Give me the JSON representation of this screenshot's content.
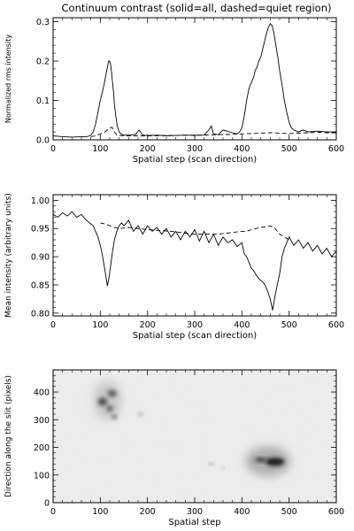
{
  "figure": {
    "title": "Continuum contrast (solid=all, dashed=quiet region)"
  },
  "chart_data": [
    {
      "type": "line",
      "xlabel": "Spatial step (scan direction)",
      "ylabel": "Normalized rms intensity",
      "xlim": [
        0,
        600
      ],
      "ylim": [
        0,
        0.31
      ],
      "x_ticks": [
        0,
        100,
        200,
        300,
        400,
        500,
        600
      ],
      "y_ticks": [
        0.0,
        0.1,
        0.2,
        0.3
      ],
      "x_tick_labels": [
        "0",
        "100",
        "200",
        "300",
        "400",
        "500",
        "600"
      ],
      "y_tick_labels": [
        "0.0",
        "0.1",
        "0.2",
        "0.3"
      ],
      "series": [
        {
          "style": "solid",
          "x": [
            0,
            20,
            40,
            60,
            70,
            75,
            80,
            85,
            90,
            95,
            100,
            104,
            108,
            112,
            116,
            118,
            120,
            122,
            124,
            126,
            128,
            130,
            133,
            136,
            140,
            145,
            150,
            160,
            175,
            182,
            190,
            200,
            220,
            240,
            260,
            280,
            300,
            320,
            330,
            335,
            340,
            350,
            360,
            380,
            390,
            395,
            400,
            405,
            410,
            415,
            420,
            425,
            428,
            432,
            436,
            440,
            444,
            448,
            452,
            456,
            460,
            464,
            468,
            472,
            476,
            480,
            485,
            490,
            495,
            500,
            505,
            510,
            520,
            530,
            540,
            560,
            580,
            600
          ],
          "y": [
            0.01,
            0.008,
            0.007,
            0.008,
            0.008,
            0.009,
            0.012,
            0.02,
            0.04,
            0.07,
            0.1,
            0.12,
            0.14,
            0.165,
            0.19,
            0.2,
            0.2,
            0.19,
            0.17,
            0.145,
            0.12,
            0.09,
            0.06,
            0.035,
            0.02,
            0.014,
            0.012,
            0.012,
            0.014,
            0.025,
            0.012,
            0.011,
            0.012,
            0.01,
            0.011,
            0.012,
            0.011,
            0.012,
            0.025,
            0.035,
            0.015,
            0.013,
            0.025,
            0.018,
            0.015,
            0.02,
            0.03,
            0.06,
            0.1,
            0.13,
            0.145,
            0.16,
            0.175,
            0.185,
            0.2,
            0.21,
            0.23,
            0.25,
            0.27,
            0.285,
            0.295,
            0.29,
            0.27,
            0.24,
            0.21,
            0.175,
            0.14,
            0.1,
            0.07,
            0.045,
            0.03,
            0.025,
            0.02,
            0.025,
            0.02,
            0.022,
            0.02,
            0.02
          ]
        },
        {
          "style": "dashed",
          "x": [
            80,
            90,
            100,
            110,
            115,
            120,
            125,
            130,
            135,
            140,
            150,
            170,
            200,
            250,
            300,
            350,
            380,
            400,
            420,
            440,
            460,
            480,
            500,
            520,
            540,
            560,
            580,
            600
          ],
          "y": [
            0.008,
            0.01,
            0.015,
            0.02,
            0.025,
            0.03,
            0.032,
            0.02,
            0.012,
            0.011,
            0.01,
            0.01,
            0.01,
            0.011,
            0.012,
            0.013,
            0.014,
            0.015,
            0.016,
            0.017,
            0.018,
            0.017,
            0.016,
            0.017,
            0.018,
            0.019,
            0.018,
            0.018
          ]
        }
      ]
    },
    {
      "type": "line",
      "xlabel": "Spatial step (scan direction)",
      "ylabel": "Mean intensity (arbitrary units)",
      "xlim": [
        0,
        600
      ],
      "ylim": [
        0.795,
        1.01
      ],
      "x_ticks": [
        0,
        100,
        200,
        300,
        400,
        500,
        600
      ],
      "y_ticks": [
        0.8,
        0.85,
        0.9,
        0.95,
        1.0
      ],
      "x_tick_labels": [
        "0",
        "100",
        "200",
        "300",
        "400",
        "500",
        "600"
      ],
      "y_tick_labels": [
        "0.80",
        "0.85",
        "0.90",
        "0.95",
        "1.00"
      ],
      "series": [
        {
          "style": "solid",
          "x": [
            0,
            10,
            20,
            30,
            40,
            50,
            60,
            70,
            80,
            85,
            90,
            95,
            100,
            104,
            108,
            112,
            115,
            118,
            122,
            126,
            130,
            135,
            140,
            145,
            150,
            160,
            170,
            180,
            190,
            200,
            210,
            220,
            230,
            240,
            250,
            260,
            270,
            280,
            290,
            300,
            310,
            320,
            330,
            340,
            350,
            360,
            370,
            380,
            390,
            400,
            405,
            410,
            415,
            420,
            425,
            430,
            435,
            440,
            445,
            450,
            455,
            460,
            465,
            470,
            475,
            480,
            485,
            490,
            495,
            500,
            510,
            520,
            530,
            540,
            550,
            560,
            570,
            580,
            590,
            600
          ],
          "y": [
            0.975,
            0.97,
            0.978,
            0.972,
            0.98,
            0.97,
            0.975,
            0.965,
            0.958,
            0.955,
            0.945,
            0.935,
            0.92,
            0.905,
            0.885,
            0.865,
            0.848,
            0.86,
            0.885,
            0.91,
            0.93,
            0.945,
            0.955,
            0.96,
            0.955,
            0.965,
            0.945,
            0.955,
            0.94,
            0.955,
            0.945,
            0.952,
            0.94,
            0.95,
            0.935,
            0.945,
            0.93,
            0.945,
            0.935,
            0.948,
            0.928,
            0.945,
            0.925,
            0.94,
            0.92,
            0.935,
            0.925,
            0.93,
            0.918,
            0.925,
            0.905,
            0.9,
            0.89,
            0.88,
            0.875,
            0.868,
            0.862,
            0.858,
            0.855,
            0.848,
            0.838,
            0.825,
            0.805,
            0.83,
            0.85,
            0.87,
            0.9,
            0.915,
            0.925,
            0.935,
            0.92,
            0.93,
            0.915,
            0.925,
            0.91,
            0.92,
            0.905,
            0.915,
            0.9,
            0.91
          ]
        },
        {
          "style": "dashed",
          "x": [
            100,
            110,
            120,
            130,
            140,
            160,
            200,
            250,
            300,
            350,
            400,
            410,
            420,
            430,
            440,
            450,
            460,
            470,
            480,
            490,
            500
          ],
          "y": [
            0.96,
            0.958,
            0.955,
            0.952,
            0.95,
            0.952,
            0.948,
            0.945,
            0.94,
            0.94,
            0.945,
            0.945,
            0.948,
            0.95,
            0.952,
            0.953,
            0.955,
            0.95,
            0.94,
            0.935,
            0.93
          ]
        }
      ]
    },
    {
      "type": "heatmap",
      "xlabel": "Spatial step",
      "ylabel": "Direction along the slit (pixels)",
      "xlim": [
        0,
        600
      ],
      "ylim": [
        0,
        480
      ],
      "x_ticks": [
        0,
        100,
        200,
        300,
        400,
        500,
        600
      ],
      "y_ticks": [
        0,
        100,
        200,
        300,
        400
      ],
      "x_tick_labels": [
        "0",
        "100",
        "200",
        "300",
        "400",
        "500",
        "600"
      ],
      "y_tick_labels": [
        "0",
        "100",
        "200",
        "300",
        "400"
      ],
      "colormap": "grayscale",
      "background": "#eeeeee",
      "features": [
        {
          "kind": "penumbra",
          "x": 115,
          "y": 370,
          "rx": 30,
          "ry": 70,
          "level": "#c8c8c8"
        },
        {
          "kind": "umbra",
          "x": 105,
          "y": 365,
          "rx": 10,
          "ry": 15,
          "level": "#505050"
        },
        {
          "kind": "umbra",
          "x": 125,
          "y": 395,
          "rx": 10,
          "ry": 12,
          "level": "#5a5a5a"
        },
        {
          "kind": "umbra",
          "x": 120,
          "y": 340,
          "rx": 8,
          "ry": 12,
          "level": "#6a6a6a"
        },
        {
          "kind": "umbra",
          "x": 130,
          "y": 310,
          "rx": 6,
          "ry": 8,
          "level": "#707070"
        },
        {
          "kind": "pore",
          "x": 185,
          "y": 320,
          "rx": 5,
          "ry": 7,
          "level": "#aaaaaa"
        },
        {
          "kind": "penumbra",
          "x": 455,
          "y": 150,
          "rx": 48,
          "ry": 55,
          "level": "#b0b0b0"
        },
        {
          "kind": "umbra",
          "x": 470,
          "y": 148,
          "rx": 20,
          "ry": 15,
          "level": "#1a1a1a"
        },
        {
          "kind": "umbra",
          "x": 440,
          "y": 155,
          "rx": 12,
          "ry": 8,
          "level": "#333333"
        },
        {
          "kind": "pore",
          "x": 335,
          "y": 140,
          "rx": 4,
          "ry": 5,
          "level": "#888888"
        },
        {
          "kind": "pore",
          "x": 360,
          "y": 125,
          "rx": 3,
          "ry": 4,
          "level": "#999999"
        }
      ]
    }
  ]
}
